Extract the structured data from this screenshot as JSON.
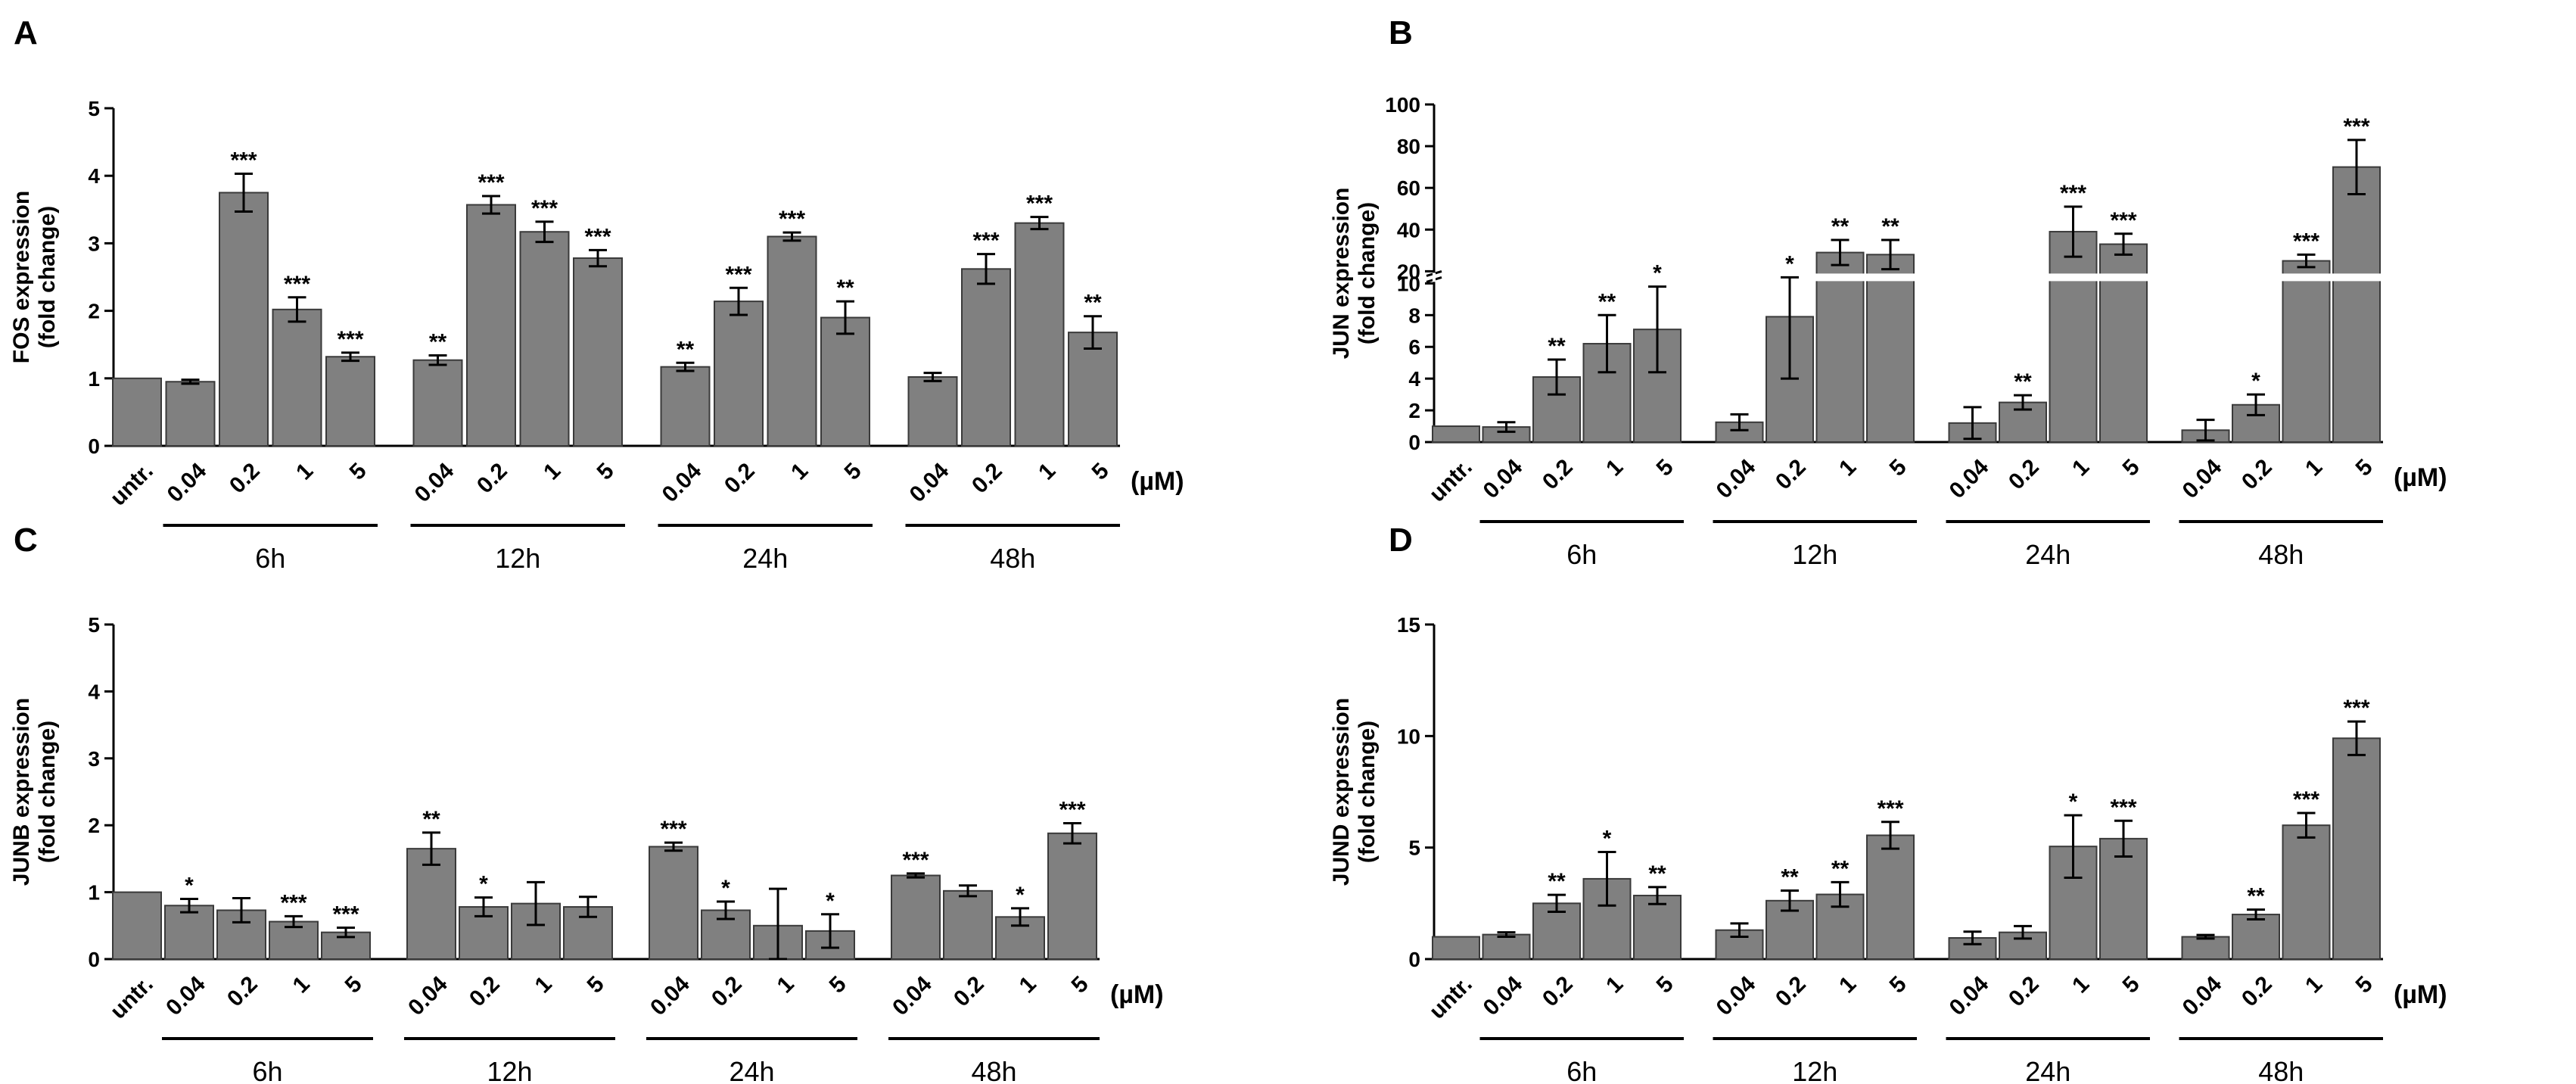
{
  "chart_data": [
    {
      "panel": "A",
      "type": "bar",
      "ylabel": [
        "FOS expression",
        "(fold change)"
      ],
      "yticks": [
        0,
        1,
        2,
        3,
        4,
        5
      ],
      "ylim": [
        0,
        5
      ],
      "unit_label": "(µM)",
      "categories": [
        "untr.",
        "0.04",
        "0.2",
        "1",
        "5",
        "0.04",
        "0.2",
        "1",
        "5",
        "0.04",
        "0.2",
        "1",
        "5",
        "0.04",
        "0.2",
        "1",
        "5"
      ],
      "groups": [
        {
          "label": "6h",
          "from": 1,
          "to": 4
        },
        {
          "label": "12h",
          "from": 5,
          "to": 8
        },
        {
          "label": "24h",
          "from": 9,
          "to": 12
        },
        {
          "label": "48h",
          "from": 13,
          "to": 16
        }
      ],
      "values": [
        1.0,
        0.95,
        3.75,
        2.02,
        1.32,
        1.27,
        3.57,
        3.17,
        2.78,
        1.17,
        2.14,
        3.1,
        1.9,
        1.02,
        2.62,
        3.3,
        1.68
      ],
      "errors": [
        0,
        0.03,
        0.28,
        0.18,
        0.06,
        0.07,
        0.13,
        0.15,
        0.12,
        0.06,
        0.2,
        0.06,
        0.24,
        0.06,
        0.22,
        0.09,
        0.24
      ],
      "significance": [
        "",
        "",
        "***",
        "***",
        "***",
        "**",
        "***",
        "***",
        "***",
        "**",
        "***",
        "***",
        "**",
        "",
        "***",
        "***",
        "**"
      ]
    },
    {
      "panel": "B",
      "type": "bar",
      "ylabel": [
        "JUN expression",
        "(fold change)"
      ],
      "yticks_lower": [
        0,
        2,
        4,
        6,
        8,
        10
      ],
      "yticks_upper": [
        20,
        40,
        60,
        80,
        100
      ],
      "axis_break": [
        10,
        20
      ],
      "ylim": [
        0,
        100
      ],
      "unit_label": "(µM)",
      "categories": [
        "untr.",
        "0.04",
        "0.2",
        "1",
        "5",
        "0.04",
        "0.2",
        "1",
        "5",
        "0.04",
        "0.2",
        "1",
        "5",
        "0.04",
        "0.2",
        "1",
        "5"
      ],
      "groups": [
        {
          "label": "6h",
          "from": 1,
          "to": 4
        },
        {
          "label": "12h",
          "from": 5,
          "to": 8
        },
        {
          "label": "24h",
          "from": 9,
          "to": 12
        },
        {
          "label": "48h",
          "from": 13,
          "to": 16
        }
      ],
      "values": [
        1.0,
        0.95,
        4.1,
        6.2,
        7.1,
        1.25,
        7.9,
        29,
        28,
        1.2,
        2.5,
        39,
        33,
        0.75,
        2.35,
        25,
        70
      ],
      "errors": [
        0,
        0.3,
        1.1,
        1.8,
        2.7,
        0.5,
        3.9,
        6,
        7,
        1.0,
        0.45,
        12,
        5,
        0.65,
        0.65,
        3,
        13
      ],
      "significance": [
        "",
        "",
        "**",
        "**",
        "*",
        "",
        "*",
        "**",
        "**",
        "",
        "**",
        "***",
        "***",
        "",
        "*",
        "***",
        "***"
      ]
    },
    {
      "panel": "C",
      "type": "bar",
      "ylabel": [
        "JUNB expression",
        "(fold change)"
      ],
      "yticks": [
        0,
        1,
        2,
        3,
        4,
        5
      ],
      "ylim": [
        0,
        5
      ],
      "unit_label": "(µM)",
      "categories": [
        "untr.",
        "0.04",
        "0.2",
        "1",
        "5",
        "0.04",
        "0.2",
        "1",
        "5",
        "0.04",
        "0.2",
        "1",
        "5",
        "0.04",
        "0.2",
        "1",
        "5"
      ],
      "groups": [
        {
          "label": "6h",
          "from": 1,
          "to": 4
        },
        {
          "label": "12h",
          "from": 5,
          "to": 8
        },
        {
          "label": "24h",
          "from": 9,
          "to": 12
        },
        {
          "label": "48h",
          "from": 13,
          "to": 16
        }
      ],
      "values": [
        1.0,
        0.8,
        0.73,
        0.56,
        0.4,
        1.65,
        0.78,
        0.83,
        0.78,
        1.68,
        0.73,
        0.5,
        0.42,
        1.25,
        1.02,
        0.63,
        1.88
      ],
      "errors": [
        0,
        0.1,
        0.18,
        0.08,
        0.07,
        0.24,
        0.14,
        0.32,
        0.15,
        0.06,
        0.13,
        0.55,
        0.25,
        0.03,
        0.08,
        0.13,
        0.15
      ],
      "significance": [
        "",
        "*",
        "",
        "***",
        "***",
        "**",
        "*",
        "",
        "",
        "***",
        "*",
        "",
        "*",
        "***",
        "",
        "*",
        "***"
      ]
    },
    {
      "panel": "D",
      "type": "bar",
      "ylabel": [
        "JUND expression",
        "(fold change)"
      ],
      "yticks": [
        0,
        5,
        10,
        15
      ],
      "ylim": [
        0,
        15
      ],
      "unit_label": "(µM)",
      "categories": [
        "untr.",
        "0.04",
        "0.2",
        "1",
        "5",
        "0.04",
        "0.2",
        "1",
        "5",
        "0.04",
        "0.2",
        "1",
        "5",
        "0.04",
        "0.2",
        "1",
        "5"
      ],
      "groups": [
        {
          "label": "6h",
          "from": 1,
          "to": 4
        },
        {
          "label": "12h",
          "from": 5,
          "to": 8
        },
        {
          "label": "24h",
          "from": 9,
          "to": 12
        },
        {
          "label": "48h",
          "from": 13,
          "to": 16
        }
      ],
      "values": [
        1.0,
        1.1,
        2.5,
        3.6,
        2.85,
        1.3,
        2.62,
        2.9,
        5.55,
        0.95,
        1.2,
        5.05,
        5.4,
        1.0,
        2.0,
        6.0,
        9.9
      ],
      "errors": [
        0,
        0.1,
        0.38,
        1.2,
        0.38,
        0.3,
        0.45,
        0.55,
        0.6,
        0.28,
        0.28,
        1.4,
        0.8,
        0.08,
        0.22,
        0.55,
        0.75
      ],
      "significance": [
        "",
        "",
        "**",
        "*",
        "**",
        "",
        "**",
        "**",
        "***",
        "",
        "",
        "*",
        "***",
        "",
        "**",
        "***",
        "***"
      ]
    }
  ]
}
